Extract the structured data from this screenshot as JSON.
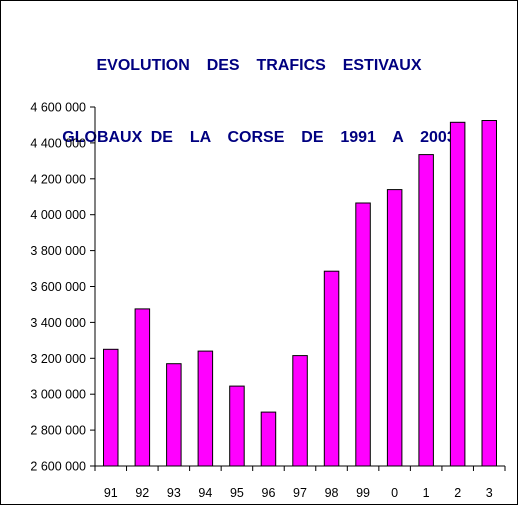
{
  "chart_data": {
    "type": "bar",
    "title_lines": [
      "EVOLUTION  DES  TRAFICS  ESTIVAUX",
      "GLOBAUX DE  LA  CORSE  DE  1991  A  2003"
    ],
    "categories": [
      "91",
      "92",
      "93",
      "94",
      "95",
      "96",
      "97",
      "98",
      "99",
      "0",
      "1",
      "2",
      "3"
    ],
    "values": [
      3250000,
      3475000,
      3170000,
      3240000,
      3045000,
      2900000,
      3215000,
      3685000,
      4065000,
      4140000,
      4335000,
      4515000,
      4525000
    ],
    "ylim": [
      2600000,
      4600000
    ],
    "yticks": [
      2600000,
      2800000,
      3000000,
      3200000,
      3400000,
      3600000,
      3800000,
      4000000,
      4200000,
      4400000,
      4600000
    ],
    "ytick_labels": [
      "2 600 000",
      "2 800 000",
      "3 000 000",
      "3 200 000",
      "3 400 000",
      "3 600 000",
      "3 800 000",
      "4 000 000",
      "4 200 000",
      "4 400 000",
      "4 600 000"
    ],
    "grid": false,
    "legend": "none",
    "colors": {
      "bar_fill": "#FF00FF",
      "bar_stroke": "#000000",
      "title": "#000080",
      "axis": "#000000"
    }
  }
}
